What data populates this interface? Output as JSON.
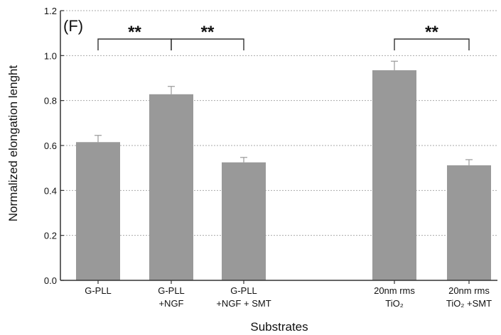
{
  "chart_data": {
    "type": "bar",
    "panel_label": "(F)",
    "xlabel": "Substrates",
    "ylabel": "Normalized elongation lenght",
    "ylim": [
      0,
      1.2
    ],
    "yticks": [
      "0.0",
      "0.2",
      "0.4",
      "0.6",
      "0.8",
      "1.0",
      "1.2"
    ],
    "grid": "horizontal dotted",
    "bar_color": "#999999",
    "categories": [
      {
        "line1": "G-PLL",
        "line2": ""
      },
      {
        "line1": "G-PLL",
        "line2": "+NGF"
      },
      {
        "line1": "G-PLL",
        "line2": "+NGF + SMT"
      },
      {
        "line1": "20nm rms",
        "line2": "TiO₂"
      },
      {
        "line1": "20nm rms",
        "line2": "TiO₂ +SMT"
      }
    ],
    "values": [
      0.615,
      0.828,
      0.525,
      0.935,
      0.512
    ],
    "errors": [
      0.03,
      0.035,
      0.022,
      0.04,
      0.025
    ],
    "significance": [
      {
        "from": 0,
        "to": 1,
        "label": "**"
      },
      {
        "from": 1,
        "to": 2,
        "label": "**"
      },
      {
        "from": 3,
        "to": 4,
        "label": "**"
      }
    ]
  }
}
